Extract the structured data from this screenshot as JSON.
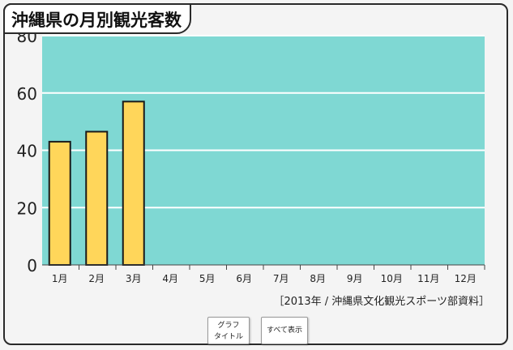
{
  "title": "沖縄県の月別観光客数",
  "source_note": "［2013年 / 沖縄県文化観光スポーツ部資料］",
  "buttons": {
    "graph_title": "グラフ\nタイトル",
    "show_all": "すべて表示"
  },
  "colors": {
    "plot_background": "#7fd8d3",
    "bar_fill": "#ffd65a",
    "bar_stroke": "#1a1a1a",
    "gridline": "#ffffff"
  },
  "chart_data": {
    "type": "bar",
    "title": "沖縄県の月別観光客数",
    "categories": [
      "1月",
      "2月",
      "3月",
      "4月",
      "5月",
      "6月",
      "7月",
      "8月",
      "9月",
      "10月",
      "11月",
      "12月"
    ],
    "values": [
      43,
      46.5,
      57,
      null,
      null,
      null,
      null,
      null,
      null,
      null,
      null,
      null
    ],
    "ylim": [
      0,
      80
    ],
    "yticks": [
      0,
      20,
      40,
      60,
      80
    ],
    "grid": true
  }
}
